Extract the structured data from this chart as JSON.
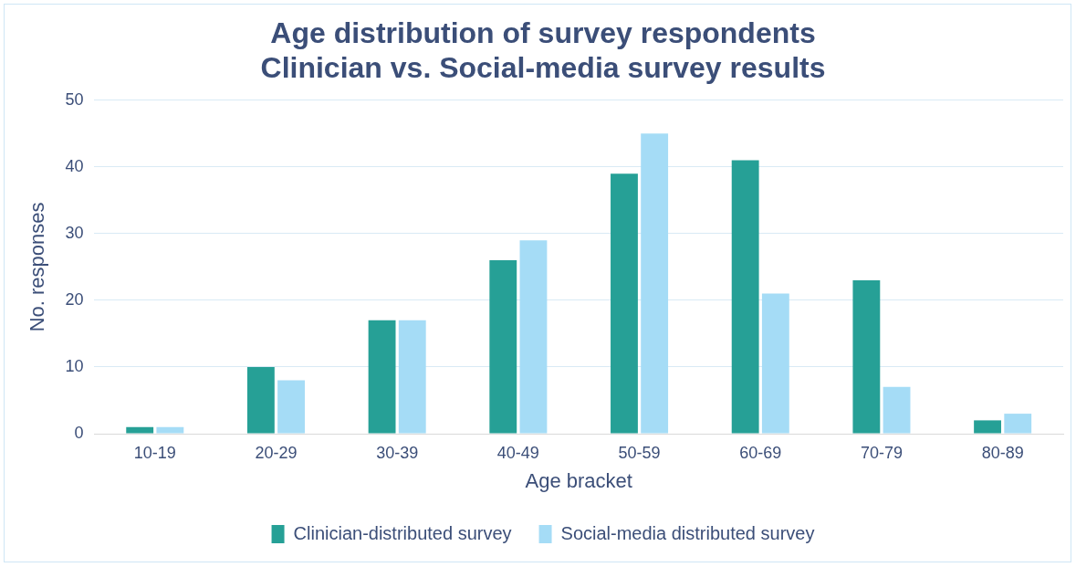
{
  "chart_data": {
    "type": "bar",
    "title": [
      "Age distribution of survey respondents",
      "Clinician vs. Social-media survey results"
    ],
    "xlabel": "Age bracket",
    "ylabel": "No. responses",
    "categories": [
      "10-19",
      "20-29",
      "30-39",
      "40-49",
      "50-59",
      "60-69",
      "70-79",
      "80-89"
    ],
    "series": [
      {
        "name": "Clinician-distributed survey",
        "color": "#26a096",
        "values": [
          1,
          10,
          17,
          26,
          39,
          41,
          23,
          2
        ]
      },
      {
        "name": "Social-media distributed survey",
        "color": "#a5dcf6",
        "values": [
          1,
          8,
          17,
          29,
          45,
          21,
          7,
          3
        ]
      }
    ],
    "ylim": [
      0,
      50
    ],
    "yticks": [
      0,
      10,
      20,
      30,
      40,
      50
    ],
    "grid": "y",
    "legend": "bottom"
  }
}
